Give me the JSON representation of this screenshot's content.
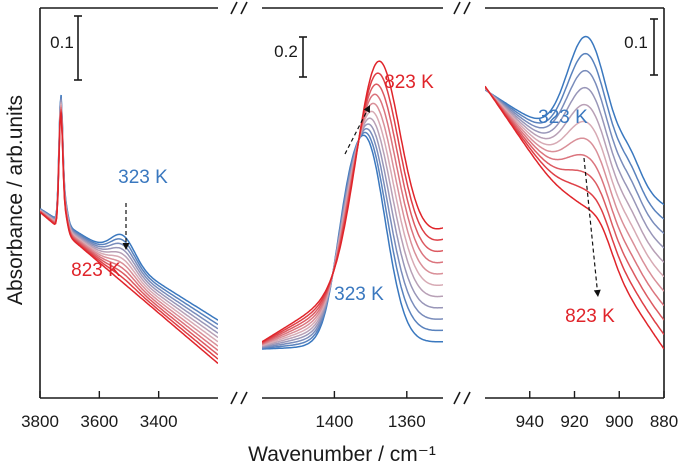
{
  "chart_data": {
    "type": "line",
    "xlabel": "Wavenumber / cm⁻¹",
    "ylabel": "Absorbance / arb.units",
    "colors": {
      "cold": "#3a78bf",
      "hot": "#e0242a",
      "axis": "#1a1a1a",
      "arrow": "#111111"
    },
    "series_count": 11,
    "temperature_range": [
      "323 K",
      "823 K"
    ],
    "panels": [
      {
        "id": "oh",
        "xlim": [
          3800,
          3200
        ],
        "xticks": [
          3800,
          3600,
          3400
        ],
        "tick_labels": [
          "3800",
          "3600",
          "3400"
        ],
        "ylim": [
          0,
          1
        ],
        "scale_bar": {
          "label": "0.1",
          "value": 0.1
        },
        "label_cold": "323 K",
        "label_hot": "823 K",
        "profile": {
          "base_start_cold": 0.49,
          "base_end_cold": 0.18,
          "base_start_hot": 0.48,
          "base_end_hot": 0.06,
          "peaks": [
            {
              "center": 3730,
              "width": 6,
              "height_cold": 0.32,
              "height_hot": 0.3
            },
            {
              "center": 3718,
              "width": 10,
              "height_cold": 0.07,
              "height_hot": 0.06
            },
            {
              "center": 3520,
              "width": 40,
              "height_cold": 0.07,
              "height_hot": 0.0
            }
          ]
        }
      },
      {
        "id": "mid",
        "xlim": [
          1440,
          1340
        ],
        "xticks": [
          1400,
          1360
        ],
        "tick_labels": [
          "1400",
          "1360"
        ],
        "ylim": [
          0,
          1
        ],
        "scale_bar": {
          "label": "0.2",
          "value": 0.2
        },
        "label_cold": "323 K",
        "label_hot": "823 K",
        "profile": {
          "base_start_cold": 0.1,
          "base_end_cold": 0.12,
          "base_start_hot": 0.12,
          "base_end_hot": 0.43,
          "peaks": [
            {
              "center": 1383,
              "width": 11,
              "height_cold": 0.57,
              "height_hot": 0.0
            },
            {
              "center": 1395,
              "width": 6,
              "height_cold": 0.08,
              "height_hot": 0.0
            },
            {
              "center": 1376,
              "width": 12,
              "height_cold": 0.0,
              "height_hot": 0.58
            }
          ]
        }
      },
      {
        "id": "low",
        "xlim": [
          960,
          880
        ],
        "xticks": [
          940,
          920,
          900,
          880
        ],
        "tick_labels": [
          "940",
          "920",
          "900",
          "880"
        ],
        "ylim": [
          0,
          1
        ],
        "scale_bar": {
          "label": "0.1",
          "value": 0.1
        },
        "label_cold": "323 K",
        "label_hot": "823 K",
        "profile": {
          "base_start_cold": 0.82,
          "base_end_cold": 0.5,
          "base_start_hot": 0.83,
          "base_end_hot": 0.1,
          "peaks": [
            {
              "center": 914,
              "width": 9,
              "height_cold": 0.33,
              "height_hot": 0.06
            },
            {
              "center": 895,
              "width": 5,
              "height_cold": 0.06,
              "height_hot": 0.0
            },
            {
              "center": 908,
              "width": 5,
              "height_cold": 0.0,
              "height_hot": 0.04
            }
          ]
        }
      }
    ]
  }
}
